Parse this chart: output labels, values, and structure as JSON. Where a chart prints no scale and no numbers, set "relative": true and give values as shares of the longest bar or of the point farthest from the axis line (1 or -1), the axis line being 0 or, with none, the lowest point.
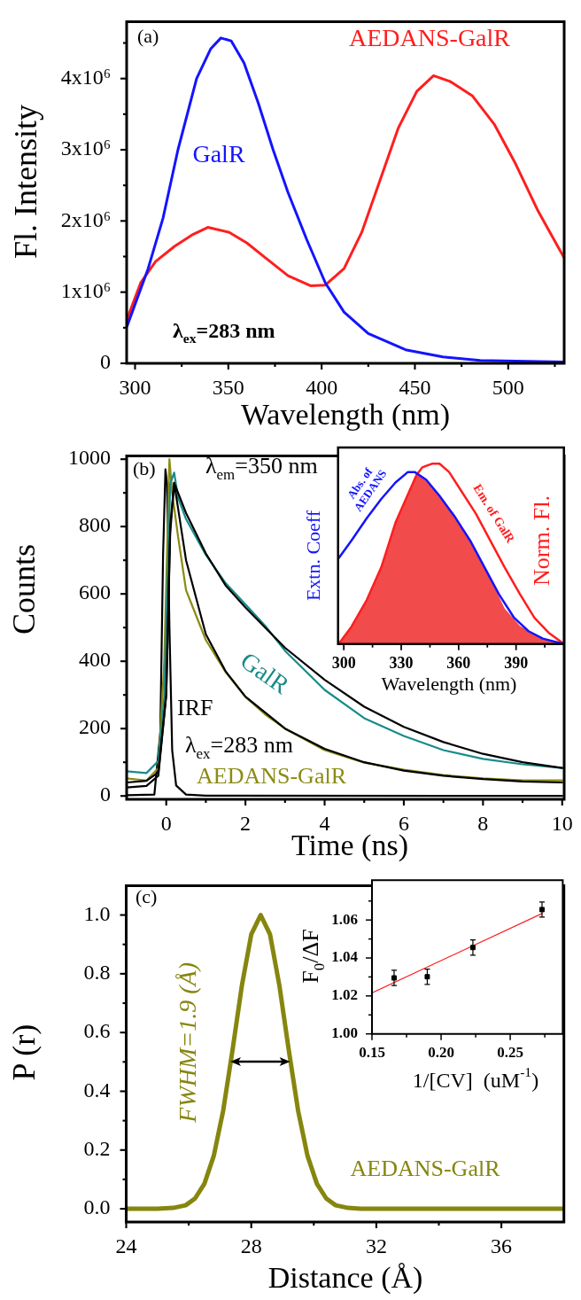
{
  "chart_data": [
    {
      "type": "line",
      "xlabel": "Wavelength (nm)",
      "ylabel": "Fl. Intensity",
      "annotations": [
        "(a)",
        "λ$_{ex}$=283 nm"
      ],
      "xlim": [
        295.5,
        530
      ],
      "xticks": [
        300,
        {
          "value": 325,
          "label": null
        },
        350,
        {
          "value": 375,
          "label": null
        },
        400,
        {
          "value": 425,
          "label": null
        },
        450,
        {
          "value": 475,
          "label": null
        },
        500,
        {
          "value": 525,
          "label": null
        }
      ],
      "ylim": [
        0,
        4800000
      ],
      "yticks": [
        0,
        {
          "value": 500000,
          "label": null
        },
        {
          "value": 1000000,
          "label": "1x10⁶"
        },
        {
          "value": 1500000,
          "label": null
        },
        {
          "value": 2000000,
          "label": "2x10⁶"
        },
        {
          "value": 2500000,
          "label": null
        },
        {
          "value": 3000000,
          "label": "3x10⁶"
        },
        {
          "value": 3500000,
          "label": null
        },
        {
          "value": 4000000,
          "label": "4x10⁶"
        },
        {
          "value": 4500000,
          "label": null
        }
      ],
      "series": [
        {
          "name": "GalR",
          "color": "#1414ff",
          "x": [
            295.7,
            307,
            315,
            323,
            333,
            340.6,
            346,
            351.5,
            358.4,
            366,
            374,
            382,
            392,
            402,
            412,
            425,
            445,
            465,
            485,
            530
          ],
          "values": [
            520000,
            1330000,
            2040000,
            3000000,
            4000000,
            4420000,
            4570000,
            4530000,
            4220000,
            3660000,
            3000000,
            2400000,
            1740000,
            1130000,
            720000,
            420000,
            190000,
            90000,
            40000,
            20000
          ]
        },
        {
          "name": "AEDANS-GalR",
          "color": "#ff1e1e",
          "x": [
            295.7,
            303,
            311,
            321,
            331,
            339,
            350.5,
            360,
            370,
            382,
            394,
            402,
            412,
            421.5,
            431,
            441,
            451,
            460,
            468.8,
            480.7,
            492.5,
            504,
            516,
            530
          ],
          "values": [
            620000,
            1130000,
            1430000,
            1640000,
            1810000,
            1910000,
            1840000,
            1690000,
            1480000,
            1230000,
            1090000,
            1100000,
            1330000,
            1840000,
            2550000,
            3300000,
            3820000,
            4040000,
            3960000,
            3760000,
            3360000,
            2800000,
            2140000,
            1480000
          ]
        }
      ]
    },
    {
      "type": "line",
      "xlabel": "Time (ns)",
      "ylabel": "Counts",
      "annotations": [
        "(b)",
        "λ$_{em}$=350 nm",
        "λ$_{ex}$=283 nm"
      ],
      "xlim": [
        -1,
        10.05
      ],
      "xticks": [
        0,
        {
          "value": 1,
          "label": null
        },
        2,
        {
          "value": 3,
          "label": null
        },
        4,
        {
          "value": 5,
          "label": null
        },
        6,
        {
          "value": 7,
          "label": null
        },
        8,
        {
          "value": 9,
          "label": null
        },
        10
      ],
      "ylim": [
        -10,
        1010
      ],
      "yticks": [
        0,
        {
          "value": 100,
          "label": null
        },
        200,
        {
          "value": 300,
          "label": null
        },
        400,
        {
          "value": 500,
          "label": null
        },
        600,
        {
          "value": 700,
          "label": null
        },
        800,
        {
          "value": 900,
          "label": null
        },
        1000
      ],
      "series": [
        {
          "color": "#000000",
          "x": [
            -1,
            -0.5,
            -0.2,
            0,
            0.1,
            0.2,
            0.5,
            1,
            1.5,
            2,
            3,
            4,
            5,
            6,
            7,
            8,
            9,
            10
          ],
          "values": [
            40,
            45,
            70,
            300,
            800,
            930,
            840,
            720,
            625,
            560,
            440,
            345,
            265,
            205,
            160,
            125,
            100,
            83
          ]
        },
        {
          "color": "#000000",
          "x": [
            -1,
            -0.5,
            -0.2,
            0,
            0.1,
            0.2,
            0.5,
            1,
            1.5,
            2,
            3,
            4,
            5,
            6,
            7,
            8,
            9,
            10
          ],
          "values": [
            25,
            30,
            60,
            300,
            780,
            930,
            700,
            480,
            370,
            295,
            200,
            140,
            100,
            75,
            60,
            50,
            43,
            40
          ]
        },
        {
          "name": "GalR",
          "color": "#198b8b",
          "x": [
            -1,
            -0.5,
            -0.2,
            -0.05,
            0.1,
            0.2,
            0.3,
            0.5,
            1,
            1.5,
            2,
            2.5,
            3,
            4,
            5,
            6,
            7,
            8,
            9,
            10
          ],
          "values": [
            73,
            68,
            104,
            294,
            927,
            960,
            885,
            822,
            716,
            632,
            569,
            505,
            431,
            315,
            231,
            178,
            136,
            110,
            94,
            83
          ]
        },
        {
          "name": "AEDANS-GalR",
          "color": "#8b8b13",
          "x": [
            -1,
            -0.5,
            -0.2,
            -0.05,
            0.08,
            0.15,
            0.3,
            0.5,
            1,
            1.5,
            2,
            2.5,
            3,
            4,
            5,
            6,
            7,
            8,
            9,
            10
          ],
          "values": [
            52,
            46,
            83,
            400,
            1000,
            900,
            769,
            611,
            463,
            368,
            294,
            242,
            200,
            136,
            99,
            78,
            62,
            52,
            46,
            46
          ]
        },
        {
          "name": "IRF",
          "color": "#000000",
          "x": [
            -1,
            -0.3,
            -0.15,
            -0.08,
            -0.02,
            0.02,
            0.08,
            0.15,
            0.25,
            0.5,
            1,
            10
          ],
          "values": [
            2,
            4,
            189,
            716,
            970,
            927,
            505,
            136,
            31,
            4,
            1,
            0
          ]
        }
      ]
    },
    {
      "type": "line",
      "xlabel": "Wavelength (nm)",
      "ylabel": "Extn. Coeff",
      "y2label": "Norm. Fl.",
      "relative": true,
      "xlim": [
        297,
        415
      ],
      "xticks": [
        300,
        {
          "value": 315,
          "label": null
        },
        330,
        {
          "value": 345,
          "label": null
        },
        360,
        {
          "value": 375,
          "label": null
        },
        390,
        {
          "value": 405,
          "label": null
        }
      ],
      "series": [
        {
          "name": "Abs. of AEDANS",
          "color": "#1414ff",
          "x": [
            297.3,
            304,
            312,
            319.6,
            327,
            333.5,
            337,
            343,
            350,
            358,
            366,
            373.5,
            381,
            389,
            396.5,
            404,
            415
          ],
          "values": [
            0.475,
            0.574,
            0.698,
            0.805,
            0.896,
            0.954,
            0.954,
            0.912,
            0.822,
            0.706,
            0.574,
            0.426,
            0.277,
            0.145,
            0.071,
            0.03,
            0
          ]
        },
        {
          "name": "Em. of GalR",
          "axis": "y2",
          "color": "#ff1e1e",
          "x": [
            297.3,
            304,
            312,
            319.6,
            327,
            333.5,
            338,
            341,
            346,
            350,
            355,
            361,
            369,
            376.5,
            384,
            392,
            399.6,
            407,
            415
          ],
          "values": [
            0,
            0.096,
            0.244,
            0.426,
            0.673,
            0.83,
            0.937,
            0.98,
            1,
            1,
            0.954,
            0.855,
            0.723,
            0.574,
            0.426,
            0.277,
            0.145,
            0.063,
            0
          ]
        },
        {
          "type": "area",
          "axis": "y2",
          "color": "#f24b4b",
          "x": [
            297.3,
            304,
            312,
            319.6,
            327,
            333.5,
            338,
            341,
            346,
            350,
            355,
            361,
            369,
            376.5,
            384,
            392,
            399.6,
            407,
            415
          ],
          "values": [
            0,
            0.096,
            0.244,
            0.426,
            0.673,
            0.83,
            0.937,
            0.926,
            0.873,
            0.822,
            0.749,
            0.656,
            0.515,
            0.366,
            0.198,
            0.1,
            0.05,
            0.019,
            0
          ]
        }
      ]
    },
    {
      "type": "line",
      "xlabel": "Distance (Å)",
      "ylabel": "P (r)",
      "annotations": [
        "(c)",
        "FWHM=1.9 (Å)"
      ],
      "xlim": [
        24,
        38
      ],
      "xticks": [
        24,
        {
          "value": 26,
          "label": null
        },
        28,
        {
          "value": 30,
          "label": null
        },
        32,
        {
          "value": 34,
          "label": null
        },
        36
      ],
      "ylim": [
        -0.045,
        1.1
      ],
      "yticks": [
        {
          "value": 0,
          "label": "0.0"
        },
        {
          "value": 0.1,
          "label": null
        },
        0.2,
        {
          "value": 0.3,
          "label": null
        },
        0.4,
        {
          "value": 0.5,
          "label": null
        },
        0.6,
        {
          "value": 0.7,
          "label": null
        },
        0.8,
        {
          "value": 0.9,
          "label": null
        },
        {
          "value": 1,
          "label": "1.0"
        }
      ],
      "series": [
        {
          "name": "AEDANS-GalR",
          "color": "#86860f",
          "x": [
            24,
            25,
            25.5,
            25.9,
            26.2,
            26.5,
            26.8,
            27.1,
            27.4,
            27.7,
            28.0,
            28.3,
            28.6,
            28.9,
            29.2,
            29.5,
            29.8,
            30.1,
            30.4,
            30.7,
            31.1,
            31.5,
            32,
            34,
            38
          ],
          "values": [
            0,
            0,
            0.003,
            0.012,
            0.035,
            0.085,
            0.18,
            0.333,
            0.54,
            0.76,
            0.934,
            1,
            0.934,
            0.76,
            0.54,
            0.333,
            0.18,
            0.085,
            0.035,
            0.012,
            0.003,
            0,
            0,
            0,
            0
          ]
        }
      ]
    },
    {
      "type": "scatter",
      "xlabel": "1/[CV]  (uM$^{-1}$)",
      "ylabel": "F$_{0}$/ΔF",
      "xlim": [
        0.15,
        0.288
      ],
      "xticks": [
        {
          "value": 0.15,
          "label": "0.15"
        },
        {
          "value": 0.175,
          "label": null
        },
        {
          "value": 0.2,
          "label": "0.20"
        },
        {
          "value": 0.225,
          "label": null
        },
        {
          "value": 0.25,
          "label": "0.25"
        },
        {
          "value": 0.275,
          "label": null
        }
      ],
      "ylim": [
        1.0,
        1.081
      ],
      "yticks": [
        {
          "value": 1,
          "label": "1.00"
        },
        {
          "value": 1.01,
          "label": null
        },
        {
          "value": 1.02,
          "label": "1.02"
        },
        {
          "value": 1.03,
          "label": null
        },
        {
          "value": 1.04,
          "label": "1.04"
        },
        {
          "value": 1.05,
          "label": null
        },
        {
          "value": 1.06,
          "label": "1.06"
        },
        {
          "value": 1.07,
          "label": null
        }
      ],
      "series": [
        {
          "color": "#000000",
          "marker": "square",
          "x": [
            0.166,
            0.19,
            0.223,
            0.273
          ],
          "values": [
            1.0295,
            1.0301,
            1.0455,
            1.0655
          ],
          "errors": [
            0.004,
            0.004,
            0.004,
            0.004
          ]
        },
        {
          "type": "line",
          "color": "#ff2020",
          "x": [
            0.15,
            0.273
          ],
          "values": [
            1.0216,
            1.0634
          ]
        }
      ]
    }
  ]
}
